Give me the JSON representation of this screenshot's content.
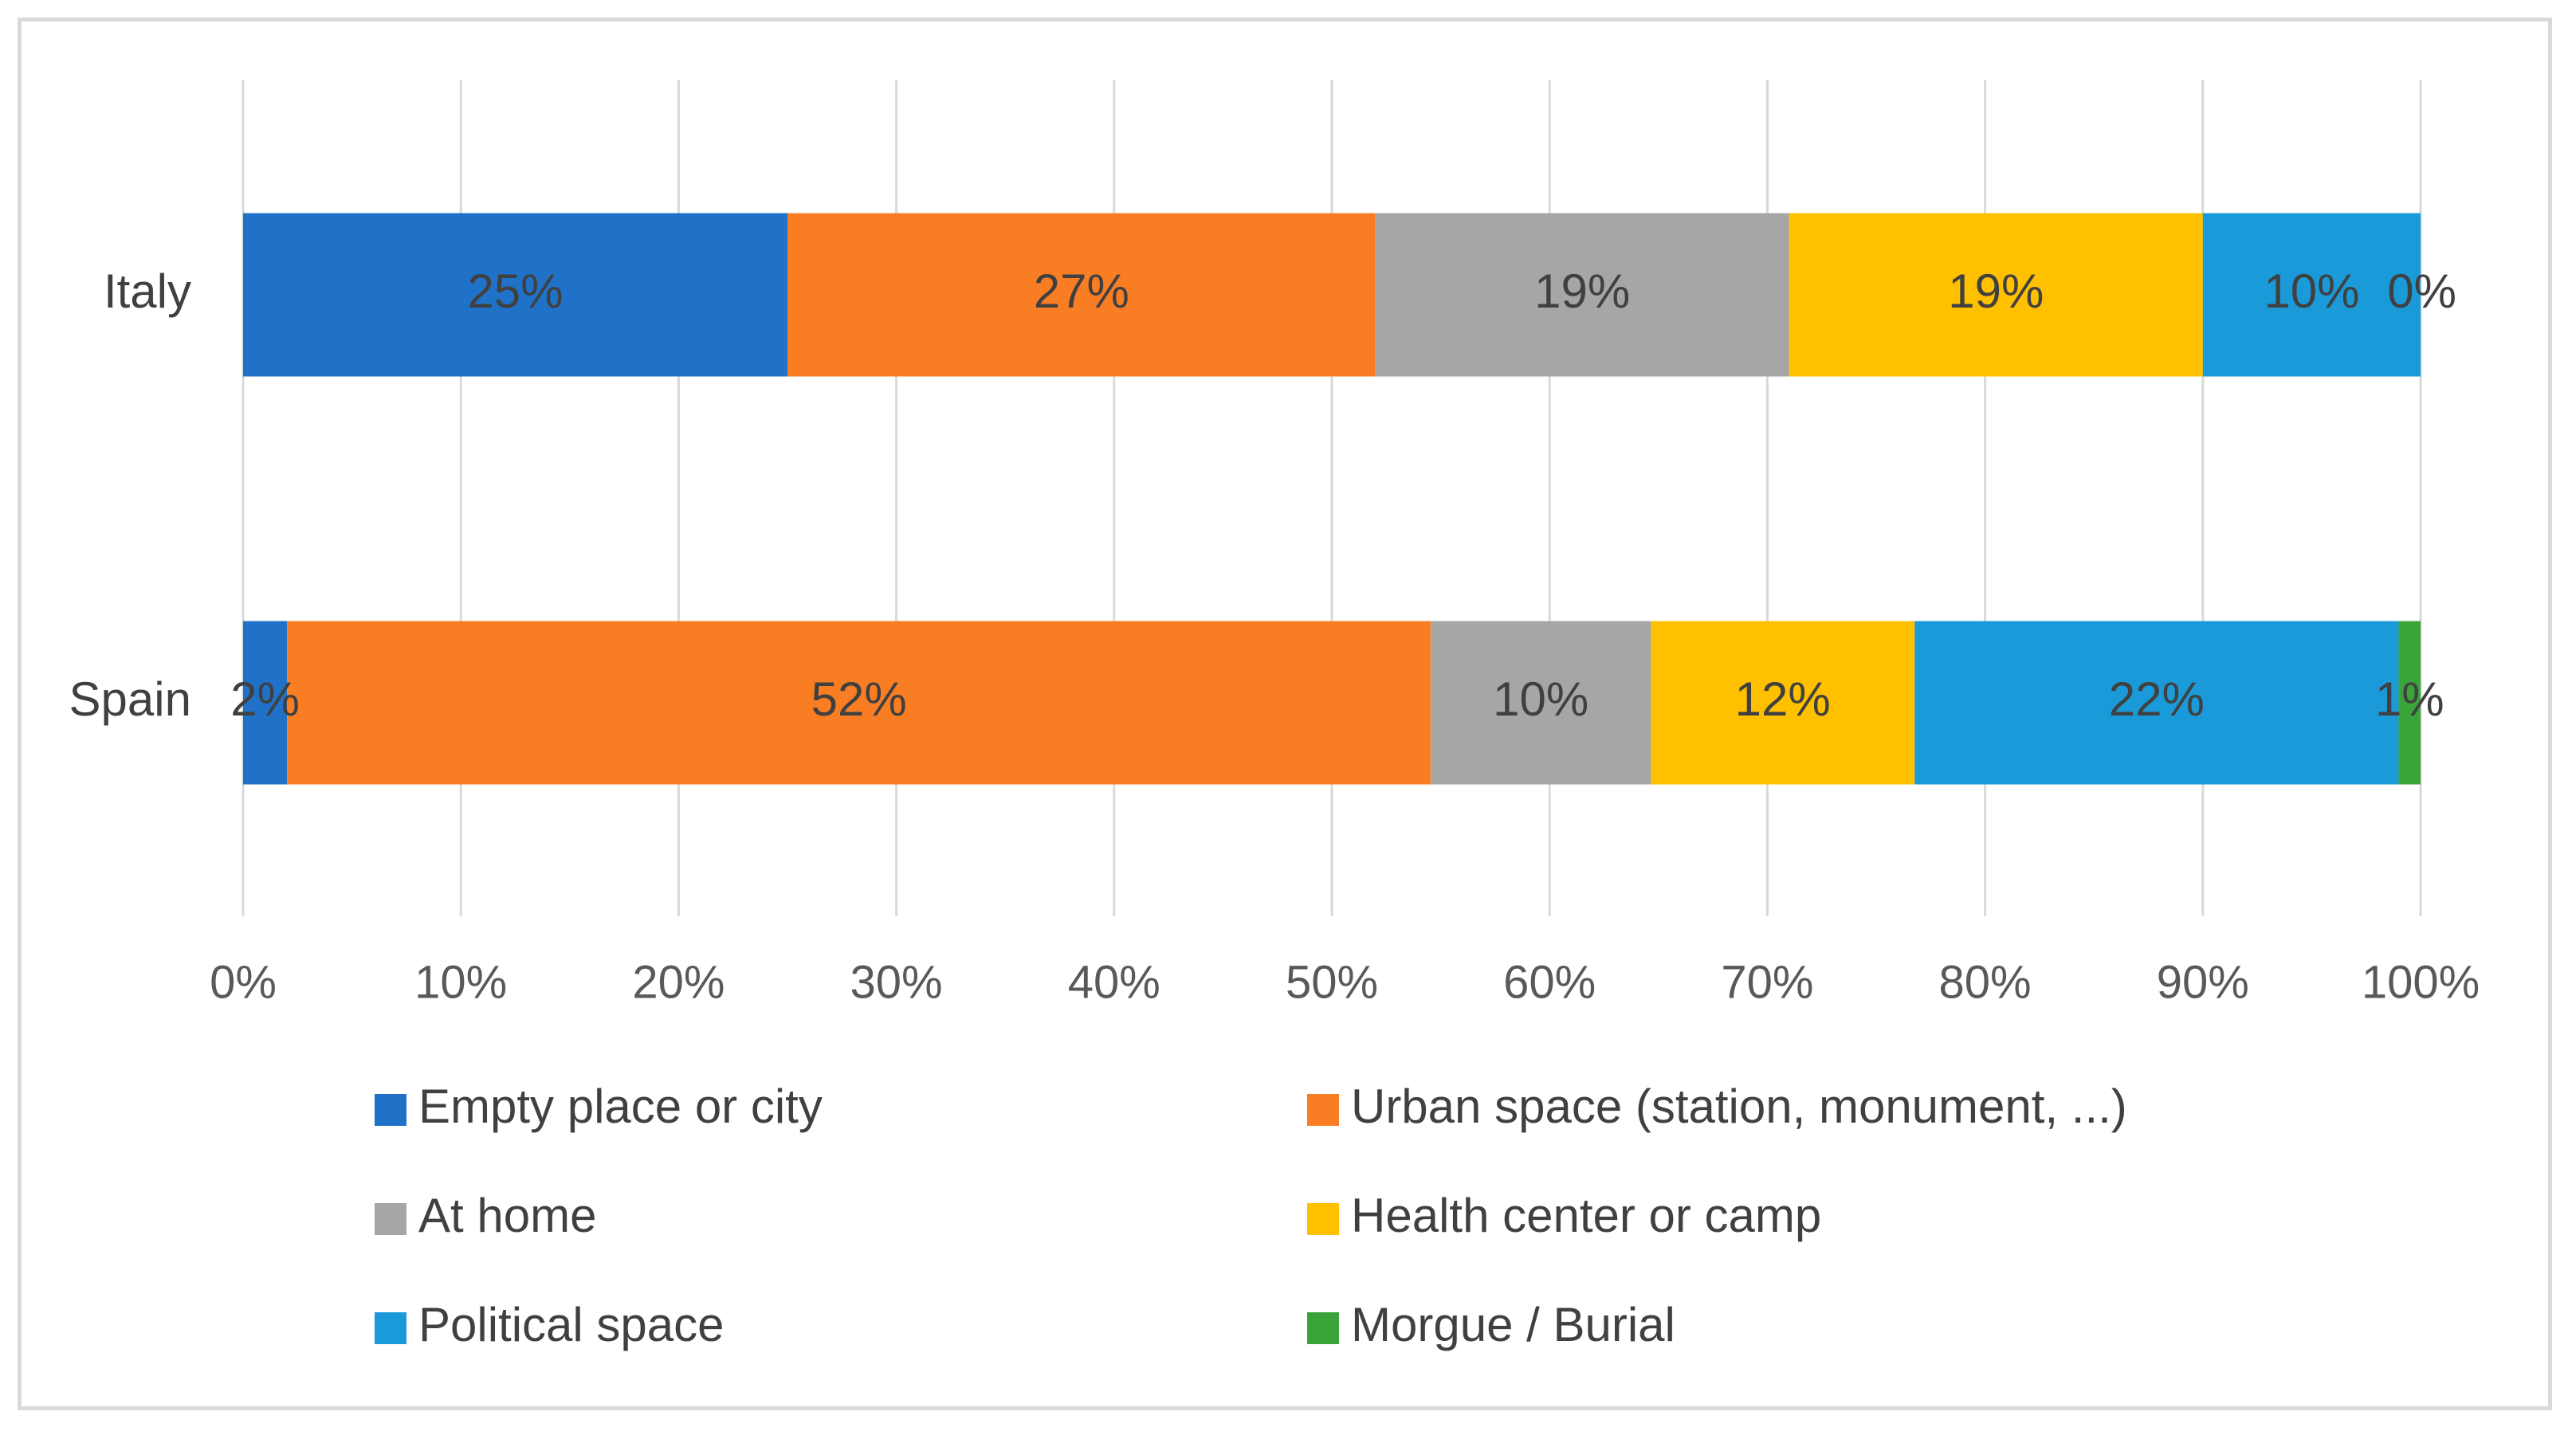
{
  "chart_data": {
    "type": "bar",
    "orientation": "horizontal",
    "stacked": "100%",
    "categories": [
      "Italy",
      "Spain"
    ],
    "series": [
      {
        "name": "Empty place or city",
        "values": [
          25,
          2
        ],
        "labels": [
          "25%",
          "2%"
        ],
        "color": "#1f72c8"
      },
      {
        "name": "Urban space (station, monument, ...)",
        "values": [
          27,
          52
        ],
        "labels": [
          "27%",
          "52%"
        ],
        "color": "#f97e23"
      },
      {
        "name": "At home",
        "values": [
          19,
          10
        ],
        "labels": [
          "19%",
          "10%"
        ],
        "color": "#a6a6a6"
      },
      {
        "name": "Health center or camp",
        "values": [
          19,
          12
        ],
        "labels": [
          "19%",
          "12%"
        ],
        "color": "#ffc000"
      },
      {
        "name": "Political space",
        "values": [
          10,
          22
        ],
        "labels": [
          "10%",
          "22%"
        ],
        "color": "#1a9ad8"
      },
      {
        "name": "Morgue / Burial",
        "values": [
          0,
          1
        ],
        "labels": [
          "0%",
          "1%"
        ],
        "color": "#3aa43a"
      }
    ],
    "xlim": [
      0,
      100
    ],
    "xticks": [
      "0%",
      "10%",
      "20%",
      "30%",
      "40%",
      "50%",
      "60%",
      "70%",
      "80%",
      "90%",
      "100%"
    ],
    "grid": "vertical",
    "legend": "bottom",
    "title": "",
    "xlabel": "",
    "ylabel": ""
  }
}
